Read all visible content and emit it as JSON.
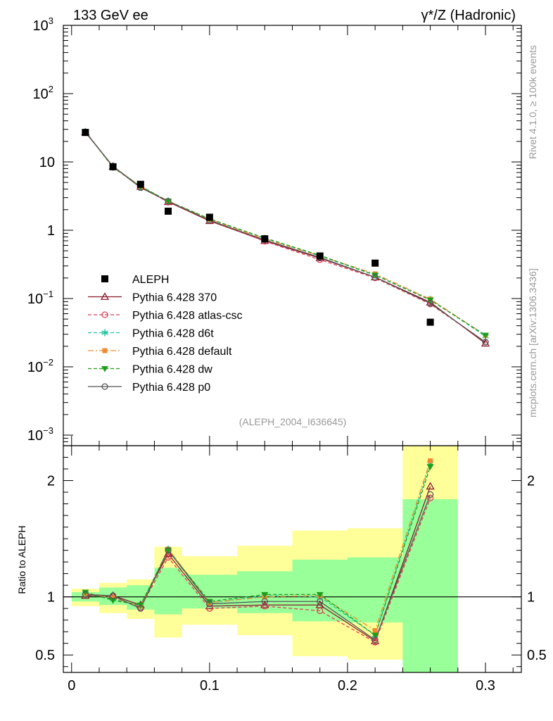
{
  "header": {
    "left": "133 GeV ee",
    "right": "γ*/Z (Hadronic)"
  },
  "side_labels": {
    "rivet": "Rivet 4.1.0, ≥ 100k events",
    "mcplots": "mcplots.cern.ch [arXiv:1306.3436]"
  },
  "watermark": "(ALEPH_2004_I636645)",
  "ratio_ylabel": "Ratio to ALEPH",
  "colors": {
    "data": "#000000",
    "p370": "#8b1a2b",
    "atlas": "#e0405a",
    "d6t": "#22c4a0",
    "default": "#f08a30",
    "dw": "#1aa01a",
    "p0": "#555555",
    "band_yellow": "#ffff99",
    "band_green": "#99ff99"
  },
  "chart_data": [
    {
      "type": "scatter",
      "panel": "main",
      "yscale": "log",
      "ylim": [
        0.0007,
        1000
      ],
      "xlim": [
        -0.006,
        0.326
      ],
      "x_ticks": [
        0,
        0.1,
        0.2,
        0.3
      ],
      "y_tick_labels": [
        {
          "value": 1000,
          "base": "10",
          "exp": "3"
        },
        {
          "value": 100,
          "base": "10",
          "exp": "2"
        },
        {
          "value": 10,
          "base": "10",
          "exp": ""
        },
        {
          "value": 1,
          "base": "1",
          "exp": ""
        },
        {
          "value": 0.1,
          "base": "10",
          "exp": "−1"
        },
        {
          "value": 0.01,
          "base": "10",
          "exp": "−2"
        },
        {
          "value": 0.001,
          "base": "10",
          "exp": "−3"
        }
      ],
      "x": [
        0.01,
        0.03,
        0.05,
        0.07,
        0.1,
        0.14,
        0.18,
        0.22,
        0.26,
        0.3
      ],
      "data": {
        "name": "ALEPH",
        "x": [
          0.01,
          0.03,
          0.05,
          0.07,
          0.1,
          0.14,
          0.18,
          0.22,
          0.26
        ],
        "values": [
          27.0,
          8.5,
          4.7,
          1.9,
          1.55,
          0.75,
          0.42,
          0.33,
          0.045
        ]
      },
      "series": [
        {
          "name": "Pythia 6.428 370",
          "key": "p370",
          "style": "solid",
          "marker": "triangle-open",
          "values": [
            27.2,
            8.6,
            4.35,
            2.6,
            1.37,
            0.7,
            0.39,
            0.205,
            0.088,
            0.022
          ]
        },
        {
          "name": "Pythia 6.428 atlas-csc",
          "key": "atlas",
          "style": "dashed",
          "marker": "circle-open",
          "values": [
            27.6,
            8.4,
            4.3,
            2.58,
            1.4,
            0.69,
            0.37,
            0.2,
            0.083,
            0.023
          ]
        },
        {
          "name": "Pythia 6.428 d6t",
          "key": "d6t",
          "style": "dashed",
          "marker": "star",
          "values": [
            27.8,
            8.4,
            4.4,
            2.68,
            1.46,
            0.76,
            0.42,
            0.22,
            0.097,
            0.028
          ]
        },
        {
          "name": "Pythia 6.428 default",
          "key": "default",
          "style": "dashdot",
          "marker": "square",
          "values": [
            27.8,
            8.4,
            4.4,
            2.68,
            1.45,
            0.75,
            0.42,
            0.23,
            0.098,
            0.029
          ]
        },
        {
          "name": "Pythia 6.428 dw",
          "key": "dw",
          "style": "dashed",
          "marker": "triangle-down",
          "values": [
            28.0,
            8.3,
            4.4,
            2.66,
            1.47,
            0.77,
            0.43,
            0.22,
            0.095,
            0.029
          ]
        },
        {
          "name": "Pythia 6.428 p0",
          "key": "p0",
          "style": "solid",
          "marker": "circle-open",
          "values": [
            27.5,
            8.6,
            4.2,
            2.65,
            1.4,
            0.72,
            0.4,
            0.205,
            0.085,
            0.023
          ]
        }
      ]
    },
    {
      "type": "line",
      "panel": "ratio",
      "ylabel": "Ratio to ALEPH",
      "ylim": [
        0.35,
        2.3
      ],
      "xlim": [
        -0.006,
        0.326
      ],
      "y_ticks": [
        0.5,
        1,
        2
      ],
      "x_ticks": [
        0,
        0.1,
        0.2,
        0.3
      ],
      "x_tick_labels": [
        "0",
        "0.1",
        "0.2",
        "0.3"
      ],
      "bands": [
        {
          "x0": 0.0,
          "x1": 0.02,
          "y_lo": 0.92,
          "y_hi": 1.07,
          "g_lo": 0.96,
          "g_hi": 1.04
        },
        {
          "x0": 0.02,
          "x1": 0.04,
          "y_lo": 0.86,
          "y_hi": 1.12,
          "g_lo": 0.93,
          "g_hi": 1.08
        },
        {
          "x0": 0.04,
          "x1": 0.06,
          "y_lo": 0.81,
          "y_hi": 1.15,
          "g_lo": 0.89,
          "g_hi": 1.1
        },
        {
          "x0": 0.06,
          "x1": 0.08,
          "y_lo": 0.65,
          "y_hi": 1.43,
          "g_lo": 0.85,
          "g_hi": 1.25
        },
        {
          "x0": 0.08,
          "x1": 0.12,
          "y_lo": 0.76,
          "y_hi": 1.35,
          "g_lo": 0.9,
          "g_hi": 1.19
        },
        {
          "x0": 0.12,
          "x1": 0.16,
          "y_lo": 0.67,
          "y_hi": 1.44,
          "g_lo": 0.86,
          "g_hi": 1.22
        },
        {
          "x0": 0.16,
          "x1": 0.2,
          "y_lo": 0.49,
          "y_hi": 1.57,
          "g_lo": 0.79,
          "g_hi": 1.32
        },
        {
          "x0": 0.2,
          "x1": 0.24,
          "y_lo": 0.46,
          "y_hi": 1.59,
          "g_lo": 0.78,
          "g_hi": 1.34
        },
        {
          "x0": 0.24,
          "x1": 0.28,
          "y_lo": 0.35,
          "y_hi": 2.3,
          "g_lo": 0.35,
          "g_hi": 1.84
        }
      ],
      "x": [
        0.01,
        0.03,
        0.05,
        0.07,
        0.1,
        0.14,
        0.18,
        0.22,
        0.26
      ],
      "series": [
        {
          "name": "Pythia 6.428 370",
          "key": "p370",
          "style": "solid",
          "marker": "triangle-open",
          "values": [
            1.01,
            1.01,
            0.93,
            1.37,
            0.92,
            0.93,
            0.93,
            0.62,
            1.95
          ]
        },
        {
          "name": "Pythia 6.428 atlas-csc",
          "key": "atlas",
          "style": "dashed",
          "marker": "circle-open",
          "values": [
            1.02,
            0.99,
            0.91,
            1.34,
            0.9,
            0.92,
            0.88,
            0.61,
            1.85
          ]
        },
        {
          "name": "Pythia 6.428 d6t",
          "key": "d6t",
          "style": "dashed",
          "marker": "star",
          "values": [
            1.03,
            0.98,
            0.92,
            1.41,
            0.95,
            1.01,
            1.0,
            0.67,
            2.15
          ]
        },
        {
          "name": "Pythia 6.428 default",
          "key": "default",
          "style": "dashdot",
          "marker": "square",
          "values": [
            1.03,
            0.99,
            0.92,
            1.41,
            0.95,
            1.0,
            1.01,
            0.71,
            2.17
          ]
        },
        {
          "name": "Pythia 6.428 dw",
          "key": "dw",
          "style": "dashed",
          "marker": "triangle-down",
          "values": [
            1.04,
            0.97,
            0.93,
            1.4,
            0.96,
            1.02,
            1.02,
            0.67,
            2.12
          ]
        },
        {
          "name": "Pythia 6.428 p0",
          "key": "p0",
          "style": "solid",
          "marker": "circle-open",
          "values": [
            1.02,
            1.01,
            0.9,
            1.4,
            0.94,
            0.96,
            0.96,
            0.63,
            1.88
          ]
        }
      ]
    }
  ]
}
